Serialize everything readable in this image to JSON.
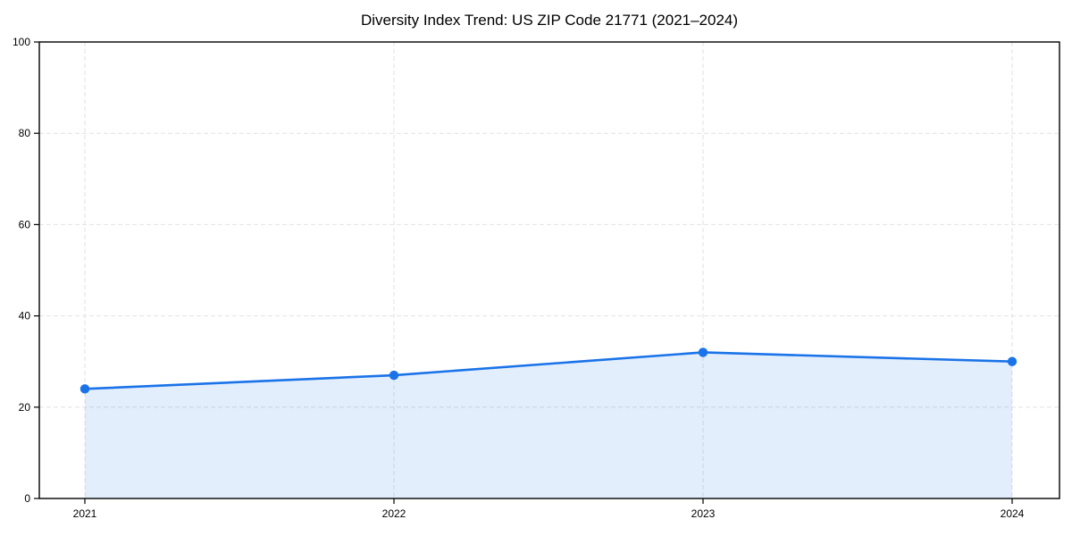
{
  "chart_data": {
    "type": "area",
    "title": "Diversity Index Trend: US ZIP Code 21771 (2021–2024)",
    "categories": [
      "2021",
      "2022",
      "2023",
      "2024"
    ],
    "series": [
      {
        "name": "Diversity Index",
        "values": [
          24,
          27,
          32,
          30
        ]
      }
    ],
    "xlabel": "",
    "ylabel": "",
    "ylim": [
      0,
      100
    ],
    "yticks": [
      0,
      20,
      40,
      60,
      80,
      100
    ],
    "grid": true,
    "grid_style": "dashed",
    "legend": "none",
    "marker": "circle",
    "colors": {
      "line": "#1a73e8",
      "marker": "#1a73e8",
      "fill": "rgba(26,115,232,0.12)",
      "grid": "#e2e2e2",
      "axis": "#000000",
      "text": "#000000",
      "background": "#ffffff"
    }
  }
}
